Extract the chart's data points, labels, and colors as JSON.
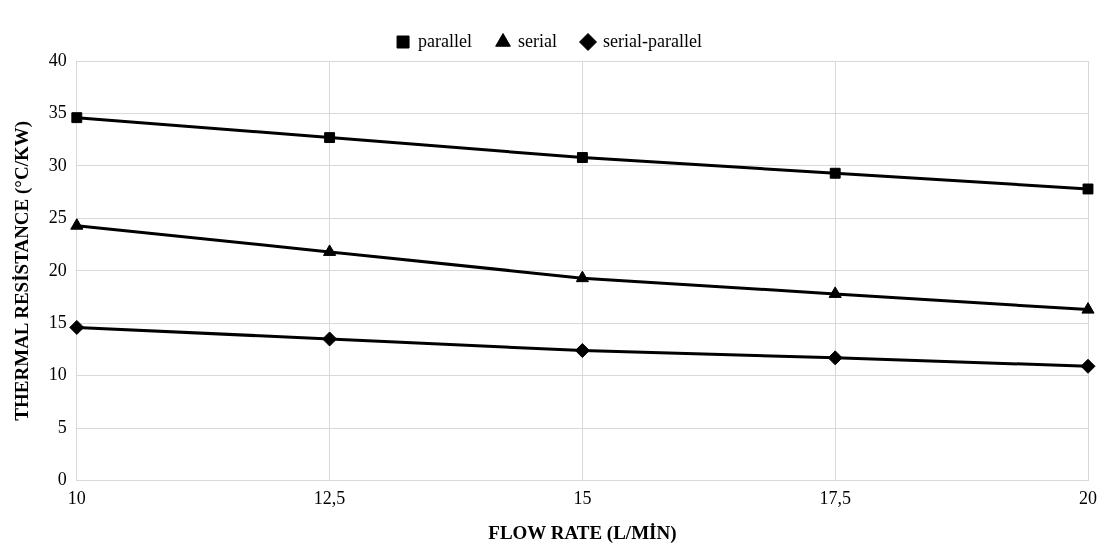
{
  "chart_data": {
    "type": "line",
    "xlabel": "FLOW RATE (L/MİN)",
    "ylabel": "THERMAL RESİSTANCE (°C/KW)",
    "categories": [
      "10",
      "12,5",
      "15",
      "17,5",
      "20"
    ],
    "series": [
      {
        "name": "parallel",
        "color": "#000000",
        "marker": "square",
        "values": [
          34.6,
          32.7,
          30.8,
          29.3,
          27.8
        ]
      },
      {
        "name": "serial",
        "color": "#000000",
        "marker": "triangle",
        "values": [
          24.3,
          21.8,
          19.3,
          17.8,
          16.3
        ]
      },
      {
        "name": "serial-parallel",
        "color": "#000000",
        "marker": "diamond",
        "values": [
          14.6,
          13.5,
          12.4,
          11.7,
          10.9
        ]
      }
    ],
    "ylim": [
      0,
      40
    ],
    "yticks": [
      0,
      5,
      10,
      15,
      20,
      25,
      30,
      35,
      40
    ],
    "grid": true,
    "legend": "top",
    "line_style": "solid"
  }
}
